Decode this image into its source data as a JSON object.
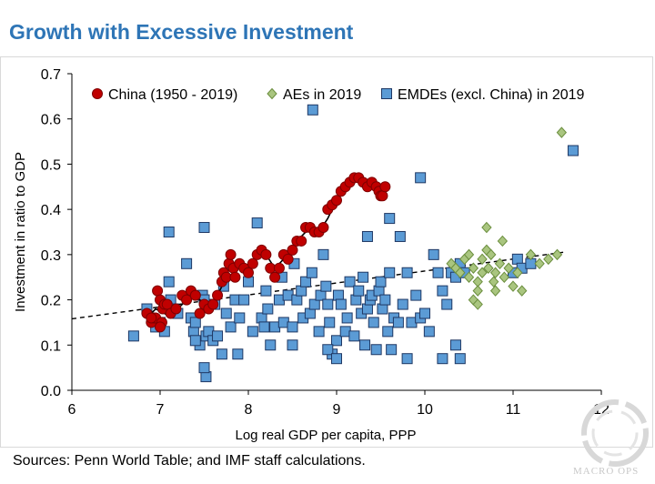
{
  "title": "Growth with Excessive Investment",
  "source": "Sources: Penn World Table; and IMF staff calculations.",
  "watermark": "MACRO OPS",
  "colors": {
    "title": "#2e75b6",
    "china_fill": "#c00000",
    "china_edge": "#7f0000",
    "ae_fill": "#a9c57f",
    "ae_edge": "#6b8e3e",
    "emde_fill": "#5b9bd5",
    "emde_edge": "#1f3864"
  },
  "chart_data": {
    "type": "scatter",
    "xlabel": "Log real GDP per capita, PPP",
    "ylabel": "Investment in ratio to GDP",
    "xlim": [
      6,
      12
    ],
    "ylim": [
      0,
      0.7
    ],
    "xticks": [
      "6",
      "7",
      "8",
      "9",
      "10",
      "11",
      "12"
    ],
    "yticks": [
      "0.0",
      "0.1",
      "0.2",
      "0.3",
      "0.4",
      "0.5",
      "0.6",
      "0.7"
    ],
    "legend": [
      "China (1950 - 2019)",
      "AEs in 2019",
      "EMDEs (excl. China) in 2019"
    ],
    "series": [
      {
        "name": "China (1950 - 2019)",
        "marker": "circle",
        "x": [
          6.85,
          6.9,
          6.93,
          6.97,
          7.0,
          7.03,
          7.05,
          6.95,
          7.02,
          7.08,
          7.12,
          6.9,
          7.0,
          7.18,
          7.25,
          7.3,
          7.35,
          7.4,
          7.45,
          7.5,
          7.55,
          7.6,
          7.65,
          7.7,
          7.72,
          7.75,
          7.78,
          7.8,
          7.83,
          7.85,
          7.9,
          7.95,
          8.0,
          8.05,
          8.1,
          8.15,
          8.2,
          8.25,
          8.3,
          8.35,
          8.4,
          8.45,
          8.5,
          8.55,
          8.6,
          8.65,
          8.7,
          8.75,
          8.8,
          8.85,
          8.9,
          8.95,
          9.0,
          9.05,
          9.1,
          9.15,
          9.2,
          9.25,
          9.3,
          9.35,
          9.4,
          9.45,
          9.48,
          9.5,
          9.52,
          9.55
        ],
        "y": [
          0.17,
          0.15,
          0.16,
          0.22,
          0.2,
          0.18,
          0.19,
          0.16,
          0.15,
          0.19,
          0.17,
          0.16,
          0.14,
          0.18,
          0.21,
          0.2,
          0.22,
          0.21,
          0.17,
          0.19,
          0.18,
          0.19,
          0.21,
          0.24,
          0.26,
          0.25,
          0.28,
          0.3,
          0.27,
          0.25,
          0.28,
          0.27,
          0.26,
          0.28,
          0.3,
          0.31,
          0.3,
          0.27,
          0.25,
          0.27,
          0.3,
          0.29,
          0.31,
          0.33,
          0.33,
          0.36,
          0.36,
          0.35,
          0.35,
          0.36,
          0.4,
          0.41,
          0.42,
          0.44,
          0.45,
          0.46,
          0.47,
          0.47,
          0.46,
          0.45,
          0.46,
          0.45,
          0.44,
          0.43,
          0.43,
          0.45
        ]
      },
      {
        "name": "AEs in 2019",
        "marker": "diamond",
        "x": [
          10.3,
          10.35,
          10.4,
          10.45,
          10.5,
          10.5,
          10.55,
          10.6,
          10.6,
          10.65,
          10.65,
          10.7,
          10.7,
          10.72,
          10.75,
          10.78,
          10.8,
          10.8,
          10.85,
          10.88,
          10.9,
          10.95,
          11.0,
          11.05,
          11.1,
          11.2,
          11.3,
          11.4,
          11.5,
          11.55,
          10.55,
          10.6
        ],
        "y": [
          0.28,
          0.27,
          0.26,
          0.29,
          0.3,
          0.25,
          0.27,
          0.24,
          0.22,
          0.26,
          0.29,
          0.31,
          0.36,
          0.27,
          0.3,
          0.24,
          0.26,
          0.22,
          0.28,
          0.33,
          0.25,
          0.27,
          0.23,
          0.26,
          0.22,
          0.3,
          0.28,
          0.29,
          0.3,
          0.57,
          0.2,
          0.19
        ]
      },
      {
        "name": "EMDEs (excl. China) in 2019",
        "marker": "square",
        "x": [
          6.7,
          6.85,
          6.95,
          7.0,
          7.05,
          7.1,
          7.12,
          7.15,
          7.2,
          7.3,
          7.35,
          7.38,
          7.4,
          7.45,
          7.48,
          7.5,
          7.52,
          7.55,
          7.6,
          7.62,
          7.65,
          7.7,
          7.72,
          7.75,
          7.8,
          7.85,
          7.88,
          7.9,
          7.95,
          8.0,
          8.05,
          8.1,
          8.15,
          8.18,
          8.2,
          8.22,
          8.25,
          8.3,
          8.35,
          8.38,
          8.4,
          8.45,
          8.5,
          8.52,
          8.55,
          8.6,
          8.62,
          8.65,
          8.7,
          8.72,
          8.75,
          8.8,
          8.82,
          8.85,
          8.88,
          8.9,
          8.92,
          8.95,
          9.0,
          9.02,
          9.05,
          9.1,
          9.12,
          9.15,
          9.2,
          9.22,
          9.25,
          9.28,
          9.3,
          9.32,
          9.35,
          9.38,
          9.4,
          9.42,
          9.45,
          9.48,
          9.5,
          9.52,
          9.55,
          9.58,
          9.6,
          9.62,
          9.65,
          9.7,
          9.72,
          9.75,
          9.8,
          9.85,
          9.9,
          9.95,
          10.0,
          10.05,
          10.1,
          10.15,
          10.2,
          10.25,
          10.3,
          10.35,
          10.4,
          10.45,
          11.0,
          11.05,
          11.1,
          11.2,
          11.68,
          8.73,
          9.95,
          7.1,
          7.5,
          9.35,
          9.6,
          7.52,
          7.5,
          7.4,
          8.9,
          9.8,
          10.2,
          10.4,
          10.35,
          9.0,
          8.5
        ],
        "y": [
          0.12,
          0.18,
          0.14,
          0.15,
          0.13,
          0.24,
          0.2,
          0.18,
          0.17,
          0.28,
          0.16,
          0.13,
          0.15,
          0.1,
          0.21,
          0.2,
          0.12,
          0.13,
          0.11,
          0.19,
          0.12,
          0.08,
          0.23,
          0.17,
          0.14,
          0.2,
          0.08,
          0.16,
          0.2,
          0.24,
          0.13,
          0.37,
          0.16,
          0.14,
          0.22,
          0.18,
          0.1,
          0.14,
          0.2,
          0.25,
          0.15,
          0.21,
          0.14,
          0.28,
          0.2,
          0.22,
          0.16,
          0.24,
          0.17,
          0.26,
          0.19,
          0.13,
          0.21,
          0.3,
          0.23,
          0.19,
          0.15,
          0.08,
          0.11,
          0.21,
          0.19,
          0.13,
          0.16,
          0.24,
          0.12,
          0.2,
          0.22,
          0.17,
          0.25,
          0.1,
          0.18,
          0.2,
          0.21,
          0.15,
          0.09,
          0.22,
          0.24,
          0.18,
          0.2,
          0.13,
          0.26,
          0.09,
          0.16,
          0.15,
          0.34,
          0.19,
          0.26,
          0.15,
          0.21,
          0.16,
          0.17,
          0.13,
          0.3,
          0.26,
          0.22,
          0.19,
          0.26,
          0.25,
          0.28,
          0.26,
          0.26,
          0.29,
          0.27,
          0.28,
          0.53,
          0.62,
          0.47,
          0.35,
          0.36,
          0.34,
          0.38,
          0.03,
          0.05,
          0.11,
          0.09,
          0.07,
          0.07,
          0.07,
          0.1,
          0.07,
          0.1
        ]
      }
    ],
    "trend_line": {
      "x": [
        6.0,
        11.6
      ],
      "y": [
        0.158,
        0.306
      ]
    },
    "china_path": {
      "x": [
        6.85,
        6.95,
        7.05,
        7.12,
        7.2,
        7.3,
        7.4,
        7.5,
        7.6,
        7.7,
        7.8,
        7.9,
        8.0,
        8.1,
        8.2,
        8.3,
        8.4,
        8.5,
        8.6,
        8.7,
        8.8,
        8.9,
        9.0,
        9.1,
        9.2,
        9.3,
        9.4,
        9.5,
        9.55
      ],
      "y": [
        0.16,
        0.18,
        0.17,
        0.16,
        0.18,
        0.2,
        0.21,
        0.19,
        0.19,
        0.23,
        0.28,
        0.27,
        0.27,
        0.3,
        0.3,
        0.27,
        0.29,
        0.32,
        0.34,
        0.36,
        0.35,
        0.38,
        0.42,
        0.45,
        0.47,
        0.47,
        0.46,
        0.44,
        0.45
      ]
    }
  }
}
